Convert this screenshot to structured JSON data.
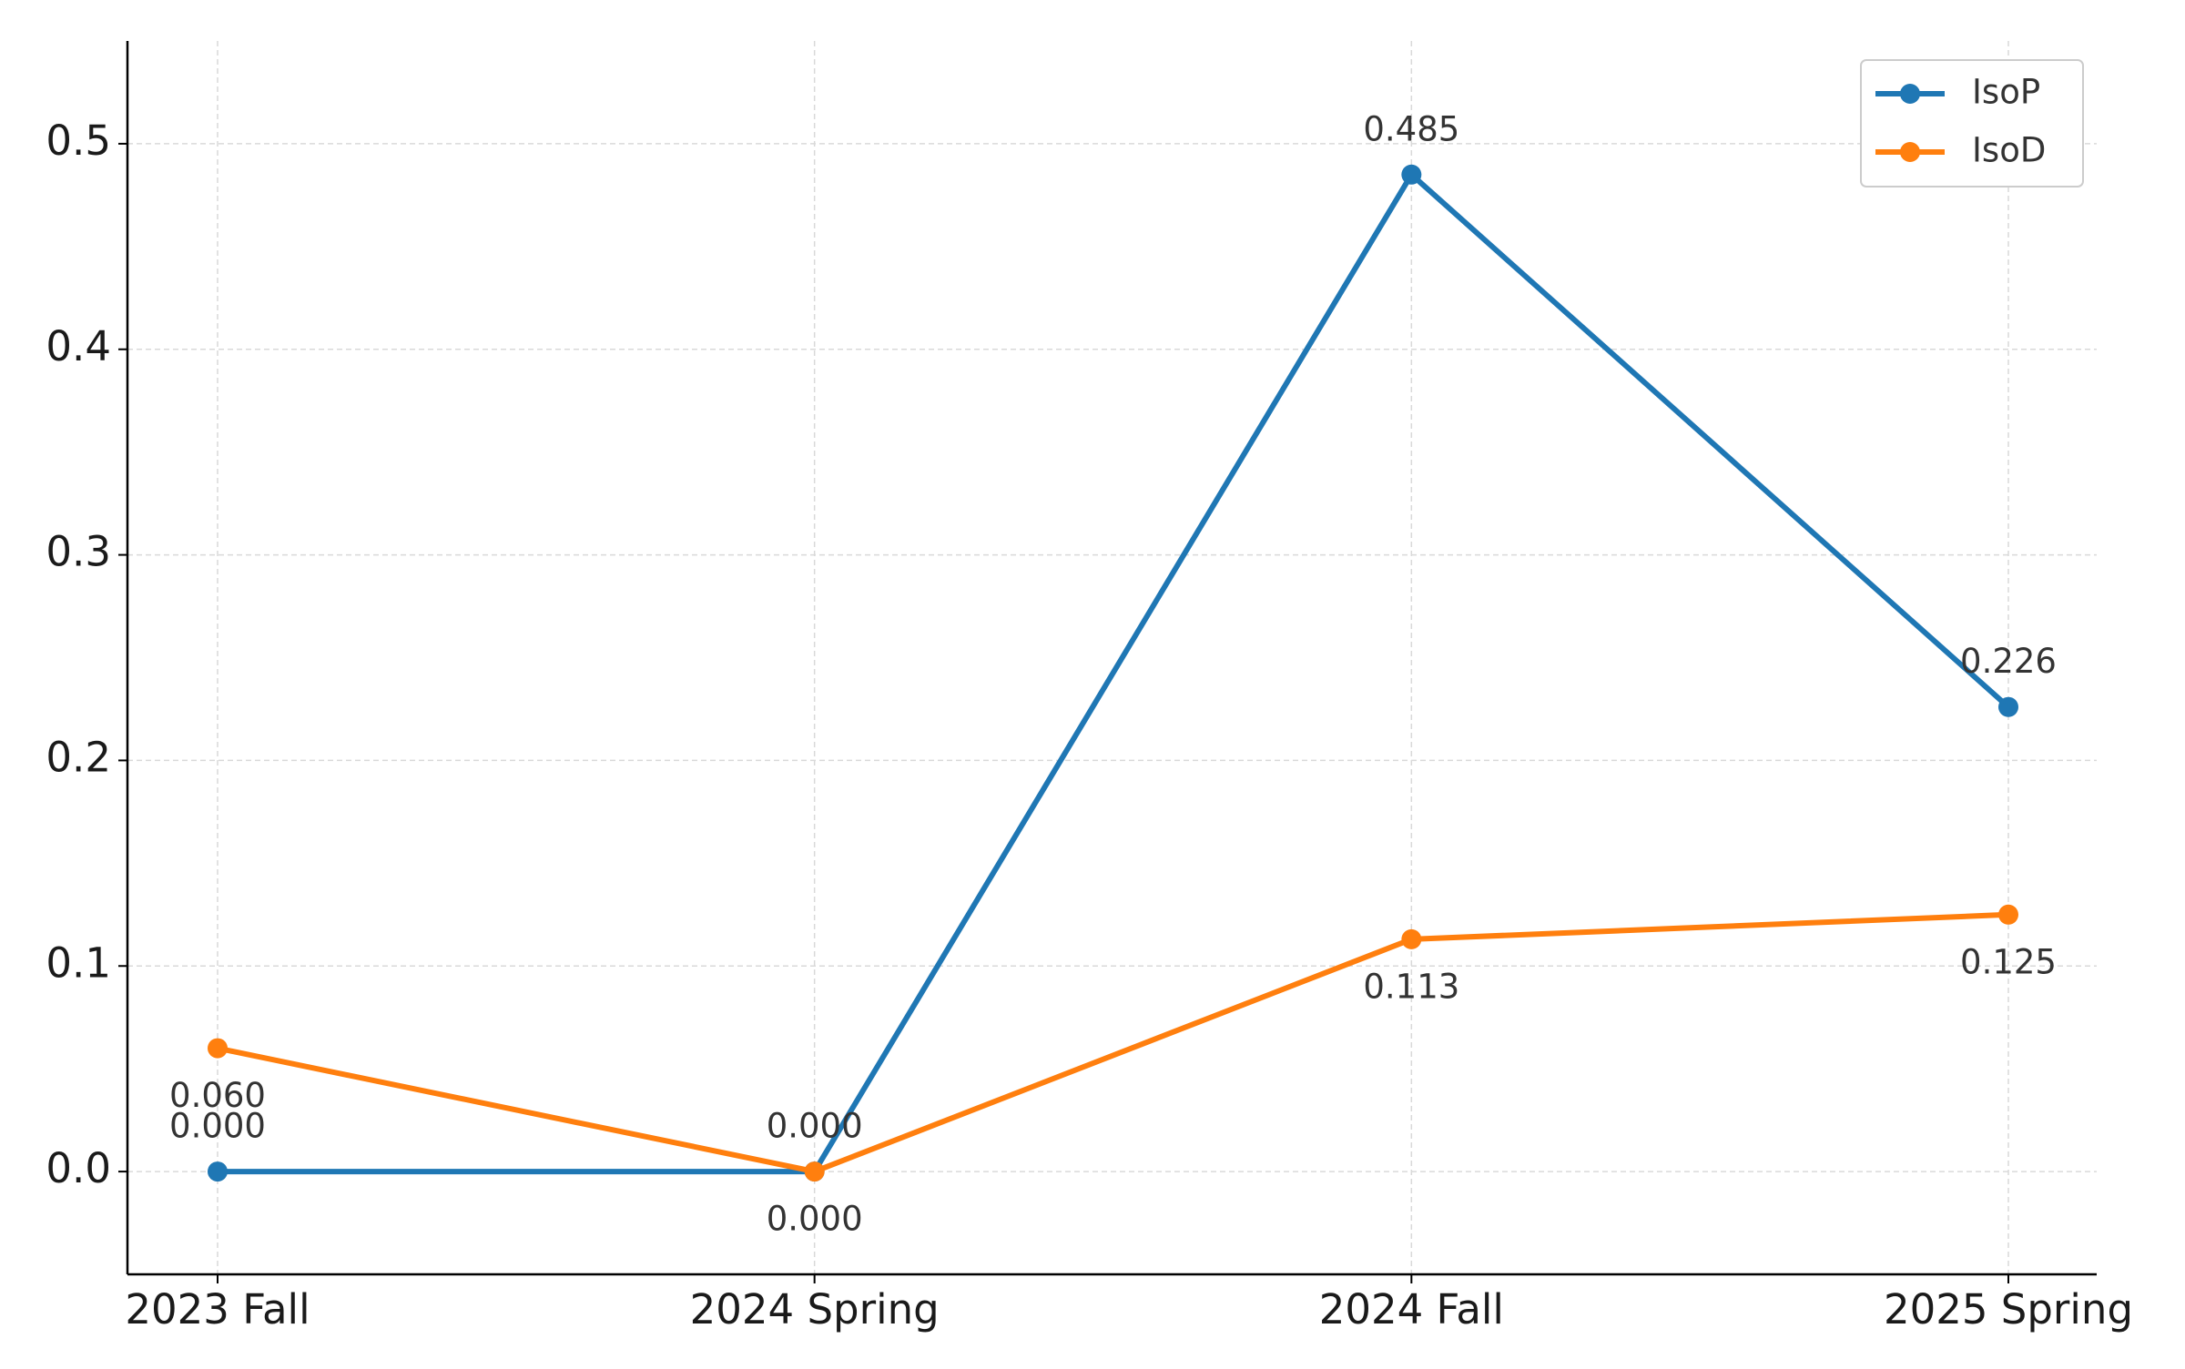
{
  "chart_data": {
    "type": "line",
    "categories": [
      "2023 Fall",
      "2024 Spring",
      "2024 Fall",
      "2025 Spring"
    ],
    "series": [
      {
        "name": "IsoP",
        "color": "#1f77b4",
        "values": [
          0,
          0,
          0.485,
          0.226
        ],
        "value_labels": [
          "0.000",
          "0.000",
          "0.485",
          "0.226"
        ]
      },
      {
        "name": "IsoD",
        "color": "#ff7f0e",
        "values": [
          0.06,
          0,
          0.113,
          0.125
        ],
        "value_labels": [
          "0.060",
          "0.000",
          "0.113",
          "0.125"
        ]
      }
    ],
    "ylim": [
      -0.05,
      0.55
    ],
    "yticks": [
      {
        "value": 0,
        "label": "0.0"
      },
      0.1,
      0.2,
      0.3,
      0.4,
      0.5
    ],
    "grid": true,
    "legend": "upper right"
  }
}
